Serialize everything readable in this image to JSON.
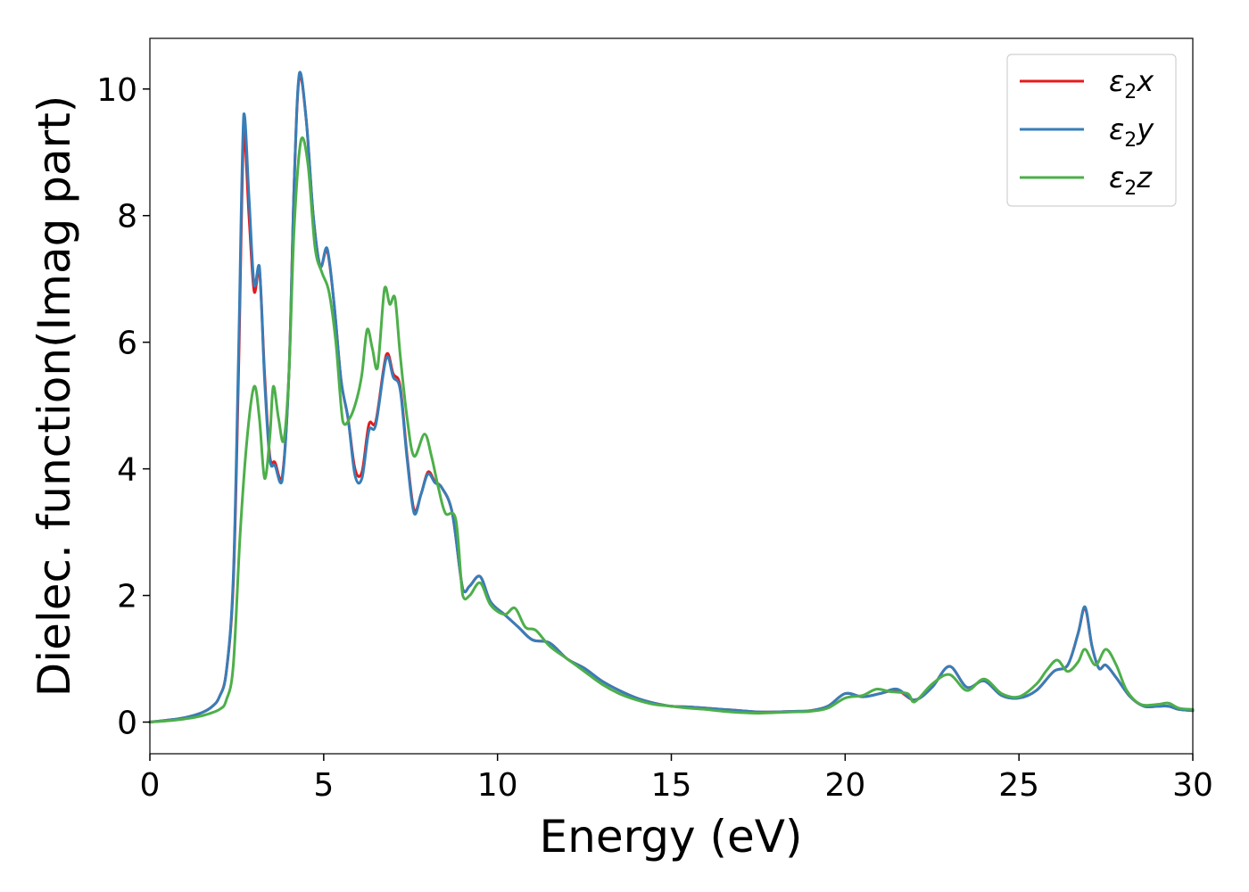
{
  "chart_data": {
    "type": "line",
    "xlabel": "Energy (eV)",
    "ylabel": "Dielec. function(Imag part)",
    "xlim": [
      0,
      30
    ],
    "ylim": [
      -0.5,
      10.8
    ],
    "xticks": [
      0,
      5,
      10,
      15,
      20,
      25,
      30
    ],
    "xtick_labels": [
      "0",
      "5",
      "10",
      "15",
      "20",
      "25",
      "30"
    ],
    "yticks": [
      0,
      2,
      4,
      6,
      8,
      10
    ],
    "ytick_labels": [
      "0",
      "2",
      "4",
      "6",
      "8",
      "10"
    ],
    "grid": false,
    "legend_position": "top-right",
    "series": [
      {
        "name": "ε₂x",
        "legend_main": "ε",
        "legend_sub": "2",
        "legend_suffix": "x",
        "color": "#e41a1c",
        "points": [
          [
            0,
            0
          ],
          [
            0.5,
            0.03
          ],
          [
            1.0,
            0.07
          ],
          [
            1.5,
            0.15
          ],
          [
            1.8,
            0.25
          ],
          [
            2.0,
            0.4
          ],
          [
            2.2,
            0.8
          ],
          [
            2.4,
            2.2
          ],
          [
            2.55,
            5.5
          ],
          [
            2.7,
            9.3
          ],
          [
            2.85,
            8.0
          ],
          [
            3.0,
            6.8
          ],
          [
            3.15,
            7.15
          ],
          [
            3.3,
            5.5
          ],
          [
            3.45,
            4.2
          ],
          [
            3.6,
            4.1
          ],
          [
            3.8,
            3.85
          ],
          [
            4.0,
            5.5
          ],
          [
            4.15,
            8.5
          ],
          [
            4.3,
            10.2
          ],
          [
            4.5,
            9.5
          ],
          [
            4.7,
            8.0
          ],
          [
            4.9,
            7.2
          ],
          [
            5.1,
            7.45
          ],
          [
            5.3,
            6.6
          ],
          [
            5.5,
            5.4
          ],
          [
            5.7,
            4.8
          ],
          [
            5.9,
            4.0
          ],
          [
            6.1,
            3.95
          ],
          [
            6.3,
            4.7
          ],
          [
            6.5,
            4.75
          ],
          [
            6.8,
            5.8
          ],
          [
            7.0,
            5.5
          ],
          [
            7.2,
            5.3
          ],
          [
            7.4,
            4.2
          ],
          [
            7.6,
            3.35
          ],
          [
            7.8,
            3.6
          ],
          [
            8.0,
            3.95
          ],
          [
            8.2,
            3.8
          ],
          [
            8.4,
            3.7
          ],
          [
            8.7,
            3.3
          ],
          [
            9.0,
            2.1
          ],
          [
            9.2,
            2.15
          ],
          [
            9.5,
            2.3
          ],
          [
            9.8,
            1.9
          ],
          [
            10.2,
            1.7
          ],
          [
            10.6,
            1.5
          ],
          [
            11.0,
            1.3
          ],
          [
            11.5,
            1.25
          ],
          [
            12.0,
            1.0
          ],
          [
            12.5,
            0.85
          ],
          [
            13.0,
            0.65
          ],
          [
            13.5,
            0.5
          ],
          [
            14.0,
            0.38
          ],
          [
            14.5,
            0.3
          ],
          [
            15.0,
            0.25
          ],
          [
            15.5,
            0.24
          ],
          [
            16.0,
            0.22
          ],
          [
            16.5,
            0.2
          ],
          [
            17.0,
            0.18
          ],
          [
            17.5,
            0.16
          ],
          [
            18.0,
            0.16
          ],
          [
            18.5,
            0.17
          ],
          [
            19.0,
            0.18
          ],
          [
            19.5,
            0.25
          ],
          [
            20.0,
            0.45
          ],
          [
            20.5,
            0.4
          ],
          [
            21.0,
            0.45
          ],
          [
            21.5,
            0.5
          ],
          [
            22.0,
            0.35
          ],
          [
            22.5,
            0.55
          ],
          [
            23.0,
            0.88
          ],
          [
            23.5,
            0.55
          ],
          [
            24.0,
            0.65
          ],
          [
            24.5,
            0.42
          ],
          [
            25.0,
            0.38
          ],
          [
            25.5,
            0.5
          ],
          [
            26.0,
            0.8
          ],
          [
            26.4,
            0.9
          ],
          [
            26.7,
            1.4
          ],
          [
            26.9,
            1.8
          ],
          [
            27.1,
            1.2
          ],
          [
            27.3,
            0.85
          ],
          [
            27.5,
            0.9
          ],
          [
            27.8,
            0.7
          ],
          [
            28.2,
            0.4
          ],
          [
            28.6,
            0.25
          ],
          [
            29.0,
            0.25
          ],
          [
            29.3,
            0.25
          ],
          [
            29.6,
            0.2
          ],
          [
            30.0,
            0.18
          ]
        ]
      },
      {
        "name": "ε₂y",
        "legend_main": "ε",
        "legend_sub": "2",
        "legend_suffix": "y",
        "color": "#377eb8",
        "points": [
          [
            0,
            0
          ],
          [
            0.5,
            0.03
          ],
          [
            1.0,
            0.07
          ],
          [
            1.5,
            0.15
          ],
          [
            1.8,
            0.25
          ],
          [
            2.0,
            0.4
          ],
          [
            2.2,
            0.8
          ],
          [
            2.4,
            2.3
          ],
          [
            2.55,
            5.8
          ],
          [
            2.7,
            9.6
          ],
          [
            2.85,
            8.3
          ],
          [
            3.0,
            6.9
          ],
          [
            3.15,
            7.2
          ],
          [
            3.3,
            5.4
          ],
          [
            3.45,
            4.15
          ],
          [
            3.6,
            4.05
          ],
          [
            3.8,
            3.8
          ],
          [
            4.0,
            5.5
          ],
          [
            4.15,
            8.5
          ],
          [
            4.3,
            10.25
          ],
          [
            4.5,
            9.5
          ],
          [
            4.7,
            8.0
          ],
          [
            4.9,
            7.2
          ],
          [
            5.1,
            7.48
          ],
          [
            5.3,
            6.6
          ],
          [
            5.5,
            5.4
          ],
          [
            5.7,
            4.8
          ],
          [
            5.9,
            3.9
          ],
          [
            6.1,
            3.85
          ],
          [
            6.3,
            4.6
          ],
          [
            6.5,
            4.7
          ],
          [
            6.8,
            5.75
          ],
          [
            7.0,
            5.45
          ],
          [
            7.2,
            5.25
          ],
          [
            7.4,
            4.15
          ],
          [
            7.6,
            3.3
          ],
          [
            7.8,
            3.6
          ],
          [
            8.0,
            3.92
          ],
          [
            8.2,
            3.78
          ],
          [
            8.4,
            3.7
          ],
          [
            8.7,
            3.3
          ],
          [
            9.0,
            2.1
          ],
          [
            9.2,
            2.15
          ],
          [
            9.5,
            2.3
          ],
          [
            9.8,
            1.9
          ],
          [
            10.2,
            1.7
          ],
          [
            10.6,
            1.5
          ],
          [
            11.0,
            1.3
          ],
          [
            11.5,
            1.25
          ],
          [
            12.0,
            1.0
          ],
          [
            12.5,
            0.85
          ],
          [
            13.0,
            0.65
          ],
          [
            13.5,
            0.5
          ],
          [
            14.0,
            0.38
          ],
          [
            14.5,
            0.3
          ],
          [
            15.0,
            0.25
          ],
          [
            15.5,
            0.24
          ],
          [
            16.0,
            0.22
          ],
          [
            16.5,
            0.2
          ],
          [
            17.0,
            0.18
          ],
          [
            17.5,
            0.16
          ],
          [
            18.0,
            0.16
          ],
          [
            18.5,
            0.17
          ],
          [
            19.0,
            0.18
          ],
          [
            19.5,
            0.25
          ],
          [
            20.0,
            0.45
          ],
          [
            20.5,
            0.4
          ],
          [
            21.0,
            0.45
          ],
          [
            21.5,
            0.52
          ],
          [
            22.0,
            0.35
          ],
          [
            22.5,
            0.55
          ],
          [
            23.0,
            0.88
          ],
          [
            23.5,
            0.55
          ],
          [
            24.0,
            0.65
          ],
          [
            24.5,
            0.42
          ],
          [
            25.0,
            0.38
          ],
          [
            25.5,
            0.5
          ],
          [
            26.0,
            0.8
          ],
          [
            26.4,
            0.9
          ],
          [
            26.7,
            1.4
          ],
          [
            26.9,
            1.82
          ],
          [
            27.1,
            1.2
          ],
          [
            27.3,
            0.85
          ],
          [
            27.5,
            0.9
          ],
          [
            27.8,
            0.7
          ],
          [
            28.2,
            0.4
          ],
          [
            28.6,
            0.25
          ],
          [
            29.0,
            0.25
          ],
          [
            29.3,
            0.25
          ],
          [
            29.6,
            0.2
          ],
          [
            30.0,
            0.18
          ]
        ]
      },
      {
        "name": "ε₂z",
        "legend_main": "ε",
        "legend_sub": "2",
        "legend_suffix": "z",
        "color": "#4daf4a",
        "points": [
          [
            0,
            0
          ],
          [
            0.5,
            0.02
          ],
          [
            1.0,
            0.05
          ],
          [
            1.5,
            0.1
          ],
          [
            2.0,
            0.2
          ],
          [
            2.2,
            0.35
          ],
          [
            2.4,
            0.9
          ],
          [
            2.6,
            3.0
          ],
          [
            2.8,
            4.5
          ],
          [
            3.0,
            5.3
          ],
          [
            3.15,
            4.8
          ],
          [
            3.3,
            3.85
          ],
          [
            3.45,
            4.5
          ],
          [
            3.55,
            5.3
          ],
          [
            3.7,
            4.8
          ],
          [
            3.85,
            4.45
          ],
          [
            4.0,
            5.5
          ],
          [
            4.15,
            7.8
          ],
          [
            4.35,
            9.2
          ],
          [
            4.55,
            8.8
          ],
          [
            4.75,
            7.5
          ],
          [
            4.95,
            7.1
          ],
          [
            5.15,
            6.8
          ],
          [
            5.35,
            6.0
          ],
          [
            5.55,
            4.75
          ],
          [
            5.75,
            4.8
          ],
          [
            5.95,
            5.1
          ],
          [
            6.1,
            5.5
          ],
          [
            6.25,
            6.2
          ],
          [
            6.4,
            5.9
          ],
          [
            6.55,
            5.6
          ],
          [
            6.75,
            6.85
          ],
          [
            6.9,
            6.6
          ],
          [
            7.05,
            6.7
          ],
          [
            7.2,
            5.8
          ],
          [
            7.4,
            4.8
          ],
          [
            7.6,
            4.2
          ],
          [
            7.9,
            4.55
          ],
          [
            8.1,
            4.2
          ],
          [
            8.3,
            3.7
          ],
          [
            8.5,
            3.3
          ],
          [
            8.8,
            3.2
          ],
          [
            9.0,
            2.0
          ],
          [
            9.2,
            2.0
          ],
          [
            9.5,
            2.2
          ],
          [
            9.8,
            1.85
          ],
          [
            10.2,
            1.7
          ],
          [
            10.5,
            1.8
          ],
          [
            10.8,
            1.5
          ],
          [
            11.1,
            1.45
          ],
          [
            11.5,
            1.2
          ],
          [
            12.0,
            1.0
          ],
          [
            12.5,
            0.8
          ],
          [
            13.0,
            0.6
          ],
          [
            13.5,
            0.45
          ],
          [
            14.0,
            0.35
          ],
          [
            14.5,
            0.28
          ],
          [
            15.0,
            0.25
          ],
          [
            15.5,
            0.22
          ],
          [
            16.0,
            0.2
          ],
          [
            16.5,
            0.17
          ],
          [
            17.0,
            0.15
          ],
          [
            17.5,
            0.14
          ],
          [
            18.0,
            0.15
          ],
          [
            18.5,
            0.16
          ],
          [
            19.0,
            0.17
          ],
          [
            19.5,
            0.22
          ],
          [
            20.0,
            0.38
          ],
          [
            20.5,
            0.42
          ],
          [
            20.9,
            0.52
          ],
          [
            21.3,
            0.48
          ],
          [
            21.8,
            0.45
          ],
          [
            22.0,
            0.32
          ],
          [
            22.5,
            0.6
          ],
          [
            23.0,
            0.75
          ],
          [
            23.5,
            0.5
          ],
          [
            24.0,
            0.68
          ],
          [
            24.5,
            0.45
          ],
          [
            25.0,
            0.4
          ],
          [
            25.5,
            0.6
          ],
          [
            25.8,
            0.82
          ],
          [
            26.1,
            0.98
          ],
          [
            26.4,
            0.8
          ],
          [
            26.7,
            0.95
          ],
          [
            26.9,
            1.15
          ],
          [
            27.2,
            0.9
          ],
          [
            27.5,
            1.15
          ],
          [
            27.8,
            0.9
          ],
          [
            28.1,
            0.5
          ],
          [
            28.5,
            0.28
          ],
          [
            29.0,
            0.28
          ],
          [
            29.3,
            0.3
          ],
          [
            29.6,
            0.22
          ],
          [
            30.0,
            0.2
          ]
        ]
      }
    ]
  }
}
